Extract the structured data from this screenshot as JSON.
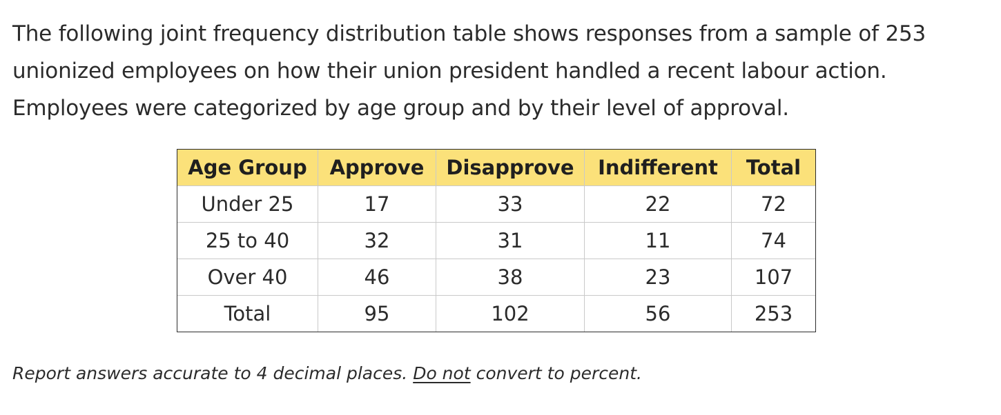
{
  "intro": {
    "line1": "The following joint frequency distribution table shows responses from a sample of 253",
    "line2": "unionized employees on how their union president handled a recent labour action.",
    "line3": "Employees were categorized by age group and by their level of approval."
  },
  "table": {
    "headers": [
      "Age Group",
      "Approve",
      "Disapprove",
      "Indifferent",
      "Total"
    ],
    "rows": [
      [
        "Under 25",
        "17",
        "33",
        "22",
        "72"
      ],
      [
        "25 to 40",
        "32",
        "31",
        "11",
        "74"
      ],
      [
        "Over 40",
        "46",
        "38",
        "23",
        "107"
      ],
      [
        "Total",
        "95",
        "102",
        "56",
        "253"
      ]
    ]
  },
  "note": {
    "part1": "Report answers accurate to 4 decimal places. ",
    "emphasis": "Do not",
    "part2": " convert to percent."
  },
  "colors": {
    "header_bg": "#fbe17a",
    "text": "#2b2b2b"
  }
}
